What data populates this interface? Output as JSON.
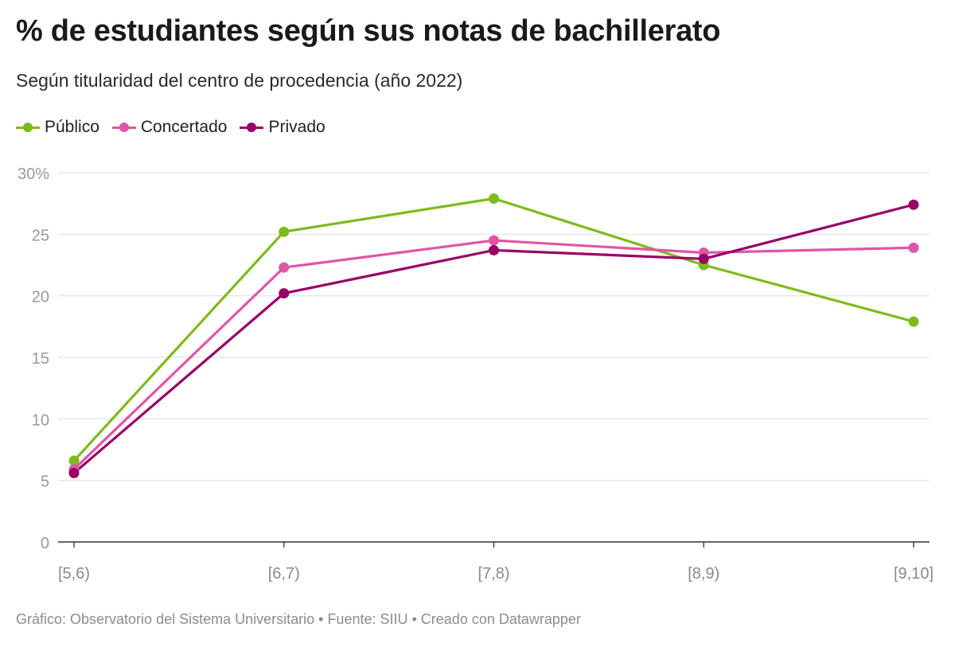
{
  "header": {
    "title": "% de estudiantes según sus notas de bachillerato",
    "subtitle": "Según titularidad del centro de procedencia (año 2022)"
  },
  "legend": [
    {
      "label": "Público",
      "color": "#7dbb1a"
    },
    {
      "label": "Concertado",
      "color": "#e055a6"
    },
    {
      "label": "Privado",
      "color": "#990066"
    }
  ],
  "footer": {
    "text": "Gráfico: Observatorio del Sistema Universitario • Fuente: SIIU • Creado con Datawrapper"
  },
  "chart_data": {
    "type": "line",
    "title": "% de estudiantes según sus notas de bachillerato",
    "subtitle": "Según titularidad del centro de procedencia (año 2022)",
    "xlabel": "",
    "ylabel": "",
    "categories": [
      "[5,6)",
      "[6,7)",
      "[7,8)",
      "[8,9)",
      "[9,10]"
    ],
    "ylim": [
      0,
      30
    ],
    "yticks": [
      0,
      5,
      10,
      15,
      20,
      25,
      30
    ],
    "ytick_labels": [
      "0",
      "5",
      "10",
      "15",
      "20",
      "25",
      "30%"
    ],
    "grid": true,
    "legend_position": "top-left",
    "series": [
      {
        "name": "Público",
        "color": "#7dbb1a",
        "values": [
          6.6,
          25.2,
          27.9,
          22.5,
          17.9
        ]
      },
      {
        "name": "Concertado",
        "color": "#e055a6",
        "values": [
          5.9,
          22.3,
          24.5,
          23.5,
          23.9
        ]
      },
      {
        "name": "Privado",
        "color": "#990066",
        "values": [
          5.6,
          20.2,
          23.7,
          23.0,
          27.4
        ]
      }
    ]
  }
}
